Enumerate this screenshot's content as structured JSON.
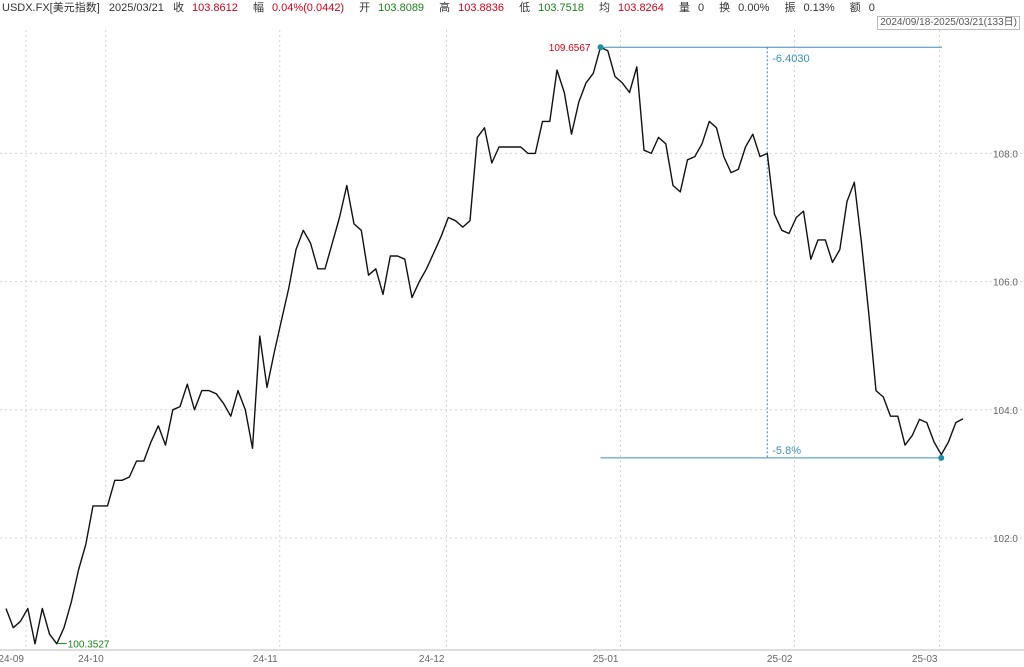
{
  "header": {
    "symbol": "USDX.FX[美元指数]",
    "date": "2025/03/21",
    "close_label": "收",
    "close": "103.8612",
    "change_label": "幅",
    "change": "0.04%(0.0442)",
    "open_label": "开",
    "open": "103.8089",
    "high_label": "高",
    "high": "103.8836",
    "low_label": "低",
    "low": "103.7518",
    "avg_label": "均",
    "avg": "103.8264",
    "volume_label": "量",
    "volume": "0",
    "turnover_label": "换",
    "turnover": "0.00%",
    "amplitude_label": "振",
    "amplitude": "0.13%",
    "amount_label": "额",
    "amount": "0",
    "range": "2024/09/18-2025/03/21(133日)"
  },
  "colors": {
    "line": "#111111",
    "marker": "#1b8fa8",
    "up": "#d0021b",
    "down": "#1a7f1a",
    "measure": "#3a8fb7"
  },
  "chart_data": {
    "type": "line",
    "ylim": [
      100.0,
      110.0
    ],
    "yticks": [
      "102.0",
      "104.0",
      "106.0",
      "108.0"
    ],
    "ytick_values": [
      102.0,
      104.0,
      106.0,
      108.0
    ],
    "xtick_labels": [
      "24-09",
      "24-10",
      "24-11",
      "24-12",
      "25-01",
      "25-02",
      "25-03"
    ],
    "xtick_indices": [
      0,
      11,
      35,
      58,
      82,
      106,
      126
    ],
    "grid": true,
    "series": [
      {
        "values": [
          100.9,
          100.6,
          100.7,
          100.9,
          100.35,
          100.9,
          100.5,
          100.35,
          100.6,
          101.0,
          101.5,
          101.9,
          102.5,
          102.5,
          102.5,
          102.9,
          102.9,
          102.95,
          103.2,
          103.2,
          103.5,
          103.75,
          103.45,
          104.0,
          104.05,
          104.4,
          104.0,
          104.3,
          104.3,
          104.25,
          104.1,
          103.9,
          104.3,
          104.0,
          103.4,
          105.15,
          104.35,
          104.9,
          105.4,
          105.9,
          106.5,
          106.8,
          106.6,
          106.2,
          106.2,
          106.6,
          107.0,
          107.5,
          106.9,
          106.8,
          106.1,
          106.2,
          105.8,
          106.4,
          106.4,
          106.35,
          105.75,
          106.0,
          106.2,
          106.45,
          106.7,
          107.0,
          106.95,
          106.85,
          106.95,
          108.25,
          108.4,
          107.85,
          108.1,
          108.1,
          108.1,
          108.1,
          108.0,
          108.0,
          108.5,
          108.5,
          109.3,
          108.95,
          108.3,
          108.8,
          109.1,
          109.25,
          109.6567,
          109.6,
          109.2,
          109.1,
          108.95,
          109.35,
          108.05,
          108.0,
          108.25,
          108.15,
          107.5,
          107.4,
          107.9,
          107.95,
          108.15,
          108.5,
          108.4,
          107.95,
          107.7,
          107.75,
          108.1,
          108.3,
          107.95,
          108.0,
          107.05,
          106.8,
          106.75,
          107.0,
          107.1,
          106.35,
          106.65,
          106.65,
          106.3,
          106.5,
          107.25,
          107.55,
          106.6,
          105.5,
          104.3,
          104.2,
          103.9,
          103.9,
          103.45,
          103.6,
          103.85,
          103.8,
          103.5,
          103.3,
          103.5,
          103.8,
          103.86
        ]
      }
    ],
    "annotations": {
      "high": {
        "index": 82,
        "value": 109.6567,
        "label": "109.6567"
      },
      "low": {
        "index": 7,
        "value": 100.3527,
        "label": "100.3527"
      },
      "end_marker_index": 129,
      "measure_top_value": 109.6567,
      "measure_bottom_value": 103.25,
      "measure_index": 105,
      "measure_diff": "-6.4030",
      "measure_pct": "-5.8%"
    }
  }
}
